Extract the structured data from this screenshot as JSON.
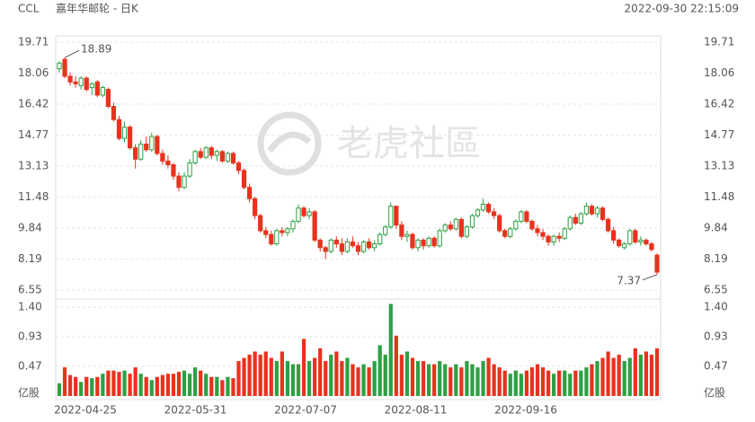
{
  "header": {
    "symbol": "CCL",
    "name": "嘉年华邮轮 - 日K",
    "time": "2022-09-30 22:15:09"
  },
  "watermark": "老虎社區",
  "chart_data": {
    "type": "candlestick",
    "up_color": "#2ea043",
    "down_color": "#e8321e",
    "ylim": [
      6.55,
      19.71
    ],
    "yticks": [
      19.71,
      18.06,
      16.42,
      14.77,
      13.13,
      11.48,
      9.84,
      8.19,
      6.55
    ],
    "grid": true,
    "xlabels": [
      "2022-04-25",
      "2022-05-31",
      "2022-07-07",
      "2022-08-11",
      "2022-09-16"
    ],
    "annotations": [
      18.89,
      7.37
    ],
    "candles": [
      [
        18.3,
        18.7,
        18.1,
        18.6
      ],
      [
        18.8,
        18.89,
        17.8,
        17.9
      ],
      [
        17.9,
        18.1,
        17.4,
        17.6
      ],
      [
        17.6,
        17.9,
        17.3,
        17.5
      ],
      [
        17.4,
        17.9,
        17.2,
        17.8
      ],
      [
        17.8,
        17.9,
        17.1,
        17.2
      ],
      [
        17.3,
        17.6,
        16.9,
        17.5
      ],
      [
        17.6,
        17.7,
        16.8,
        16.9
      ],
      [
        16.9,
        17.4,
        16.8,
        17.3
      ],
      [
        17.2,
        17.3,
        16.2,
        16.3
      ],
      [
        16.3,
        16.5,
        15.5,
        15.6
      ],
      [
        15.6,
        15.8,
        14.5,
        14.6
      ],
      [
        14.6,
        15.5,
        14.4,
        15.2
      ],
      [
        15.2,
        15.3,
        14.0,
        14.1
      ],
      [
        14.1,
        14.3,
        13.0,
        13.5
      ],
      [
        13.5,
        14.5,
        13.4,
        14.3
      ],
      [
        14.3,
        14.7,
        13.9,
        14.0
      ],
      [
        14.0,
        14.9,
        13.9,
        14.7
      ],
      [
        14.7,
        14.8,
        13.7,
        13.8
      ],
      [
        13.8,
        14.0,
        13.2,
        13.4
      ],
      [
        13.4,
        13.7,
        13.0,
        13.2
      ],
      [
        13.2,
        13.3,
        12.4,
        12.6
      ],
      [
        12.6,
        12.8,
        11.8,
        12.0
      ],
      [
        12.0,
        12.8,
        11.9,
        12.6
      ],
      [
        12.6,
        13.5,
        12.5,
        13.3
      ],
      [
        13.3,
        14.0,
        13.2,
        13.9
      ],
      [
        13.9,
        14.1,
        13.5,
        13.6
      ],
      [
        13.6,
        14.2,
        13.5,
        14.1
      ],
      [
        14.1,
        14.2,
        13.5,
        13.7
      ],
      [
        13.7,
        14.0,
        13.4,
        13.9
      ],
      [
        13.9,
        14.0,
        13.3,
        13.4
      ],
      [
        13.4,
        13.9,
        13.3,
        13.8
      ],
      [
        13.8,
        13.9,
        13.2,
        13.3
      ],
      [
        13.3,
        13.4,
        12.7,
        12.9
      ],
      [
        12.9,
        13.0,
        11.9,
        12.0
      ],
      [
        12.0,
        12.2,
        11.2,
        11.4
      ],
      [
        11.4,
        11.5,
        10.3,
        10.5
      ],
      [
        10.5,
        10.6,
        9.6,
        9.7
      ],
      [
        9.7,
        9.9,
        9.3,
        9.5
      ],
      [
        9.5,
        9.7,
        8.9,
        9.0
      ],
      [
        9.0,
        9.8,
        8.9,
        9.7
      ],
      [
        9.7,
        9.9,
        9.4,
        9.6
      ],
      [
        9.6,
        9.9,
        9.4,
        9.8
      ],
      [
        9.8,
        10.3,
        9.6,
        10.2
      ],
      [
        10.2,
        11.1,
        10.1,
        10.9
      ],
      [
        10.9,
        11.0,
        10.4,
        10.5
      ],
      [
        10.5,
        10.9,
        10.3,
        10.7
      ],
      [
        10.7,
        10.8,
        9.1,
        9.2
      ],
      [
        9.2,
        9.3,
        8.6,
        8.8
      ],
      [
        8.8,
        8.9,
        8.2,
        8.6
      ],
      [
        8.6,
        9.3,
        8.5,
        9.2
      ],
      [
        9.2,
        9.4,
        8.8,
        9.0
      ],
      [
        9.0,
        9.3,
        8.4,
        8.6
      ],
      [
        8.6,
        9.3,
        8.5,
        9.1
      ],
      [
        9.1,
        9.4,
        8.8,
        8.9
      ],
      [
        8.9,
        9.1,
        8.4,
        8.6
      ],
      [
        8.6,
        9.2,
        8.5,
        9.1
      ],
      [
        9.1,
        9.3,
        8.7,
        8.8
      ],
      [
        8.8,
        9.2,
        8.6,
        9.0
      ],
      [
        9.0,
        9.6,
        8.9,
        9.5
      ],
      [
        9.5,
        10.0,
        9.4,
        9.9
      ],
      [
        9.9,
        11.2,
        9.8,
        11.0
      ],
      [
        11.0,
        11.0,
        9.8,
        10.0
      ],
      [
        10.0,
        10.2,
        9.2,
        9.4
      ],
      [
        9.4,
        9.7,
        9.1,
        9.5
      ],
      [
        9.5,
        9.6,
        8.7,
        8.8
      ],
      [
        8.8,
        9.3,
        8.6,
        9.2
      ],
      [
        9.2,
        9.3,
        8.7,
        8.9
      ],
      [
        8.9,
        9.4,
        8.8,
        9.3
      ],
      [
        9.3,
        9.4,
        8.8,
        8.9
      ],
      [
        8.9,
        9.8,
        8.8,
        9.7
      ],
      [
        9.7,
        10.1,
        9.6,
        10.0
      ],
      [
        10.0,
        10.2,
        9.7,
        9.8
      ],
      [
        9.8,
        10.4,
        9.7,
        10.3
      ],
      [
        10.3,
        10.4,
        9.3,
        9.4
      ],
      [
        9.4,
        10.0,
        9.3,
        9.9
      ],
      [
        9.9,
        10.6,
        9.8,
        10.5
      ],
      [
        10.5,
        10.9,
        10.4,
        10.8
      ],
      [
        10.8,
        11.4,
        10.7,
        11.1
      ],
      [
        11.1,
        11.2,
        10.6,
        10.7
      ],
      [
        10.7,
        10.9,
        10.3,
        10.5
      ],
      [
        10.5,
        10.6,
        9.6,
        9.7
      ],
      [
        9.7,
        9.8,
        9.3,
        9.4
      ],
      [
        9.4,
        9.9,
        9.3,
        9.8
      ],
      [
        9.8,
        10.3,
        9.7,
        10.2
      ],
      [
        10.2,
        10.8,
        10.1,
        10.7
      ],
      [
        10.7,
        10.8,
        10.1,
        10.2
      ],
      [
        10.2,
        10.3,
        9.7,
        9.8
      ],
      [
        9.8,
        10.0,
        9.4,
        9.6
      ],
      [
        9.6,
        9.8,
        9.2,
        9.4
      ],
      [
        9.4,
        9.5,
        8.9,
        9.1
      ],
      [
        9.1,
        9.5,
        8.9,
        9.4
      ],
      [
        9.4,
        9.6,
        9.1,
        9.3
      ],
      [
        9.3,
        9.9,
        9.2,
        9.8
      ],
      [
        9.8,
        10.5,
        9.7,
        10.4
      ],
      [
        10.4,
        10.6,
        10.0,
        10.1
      ],
      [
        10.1,
        10.7,
        10.0,
        10.6
      ],
      [
        10.6,
        11.2,
        10.5,
        11.0
      ],
      [
        11.0,
        11.1,
        10.5,
        10.6
      ],
      [
        10.6,
        11.0,
        10.4,
        10.9
      ],
      [
        10.9,
        11.0,
        10.2,
        10.3
      ],
      [
        10.3,
        10.4,
        9.6,
        9.7
      ],
      [
        9.7,
        9.9,
        9.0,
        9.2
      ],
      [
        9.2,
        9.3,
        8.8,
        8.9
      ],
      [
        8.8,
        9.1,
        8.7,
        9.0
      ],
      [
        9.0,
        9.8,
        8.9,
        9.7
      ],
      [
        9.7,
        9.8,
        9.0,
        9.1
      ],
      [
        9.1,
        9.4,
        8.9,
        9.2
      ],
      [
        9.2,
        9.3,
        8.9,
        9.0
      ],
      [
        9.0,
        9.1,
        8.6,
        8.7
      ],
      [
        8.4,
        8.5,
        7.37,
        7.5
      ]
    ],
    "volume": {
      "unit": "亿股",
      "ylim": [
        0,
        1.4
      ],
      "yticks": [
        {
          "value": 1.4,
          "label": "1.40"
        },
        0.93,
        0.47
      ],
      "values": [
        0.2,
        0.45,
        0.33,
        0.3,
        0.22,
        0.3,
        0.28,
        0.3,
        0.35,
        0.4,
        0.4,
        0.38,
        0.4,
        0.35,
        0.45,
        0.35,
        0.3,
        0.25,
        0.3,
        0.33,
        0.35,
        0.35,
        0.38,
        0.4,
        0.35,
        0.45,
        0.4,
        0.35,
        0.3,
        0.3,
        0.25,
        0.3,
        0.28,
        0.55,
        0.6,
        0.65,
        0.7,
        0.65,
        0.7,
        0.6,
        0.55,
        0.7,
        0.55,
        0.5,
        0.5,
        0.9,
        0.55,
        0.6,
        0.75,
        0.55,
        0.65,
        0.7,
        0.55,
        0.6,
        0.5,
        0.45,
        0.5,
        0.45,
        0.55,
        0.8,
        0.65,
        1.45,
        0.95,
        0.65,
        0.7,
        0.6,
        0.55,
        0.55,
        0.5,
        0.5,
        0.55,
        0.5,
        0.45,
        0.5,
        0.45,
        0.55,
        0.5,
        0.45,
        0.55,
        0.6,
        0.5,
        0.45,
        0.4,
        0.35,
        0.4,
        0.35,
        0.4,
        0.45,
        0.5,
        0.45,
        0.4,
        0.35,
        0.4,
        0.4,
        0.35,
        0.4,
        0.4,
        0.45,
        0.5,
        0.55,
        0.6,
        0.7,
        0.6,
        0.65,
        0.55,
        0.6,
        0.75,
        0.65,
        0.7,
        0.65,
        0.75
      ]
    }
  }
}
